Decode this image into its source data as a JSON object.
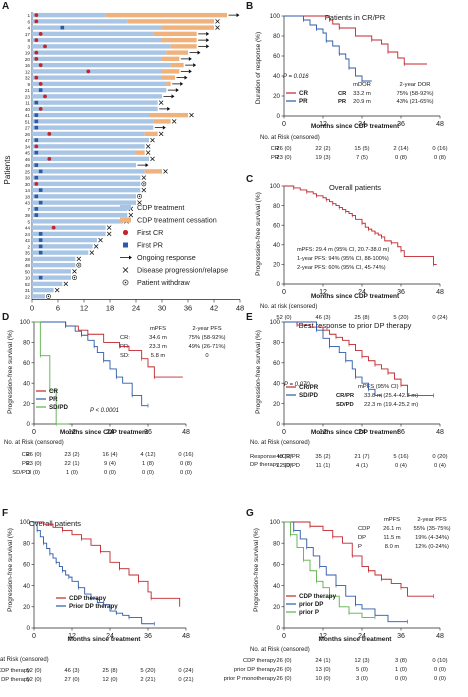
{
  "colors": {
    "treatment": "#a9c5e6",
    "cessation": "#f0b27d",
    "cr": "#c0262c",
    "pr": "#2c5aa8",
    "sd": "#5bb04a",
    "grey": "#555555"
  },
  "panelA": {
    "letter": "A",
    "ylabel": "Patients",
    "xticks": [
      0,
      6,
      12,
      18,
      24,
      30,
      36,
      42,
      48
    ],
    "legend": [
      "CDP treatment",
      "CDP treatment cessation",
      "First CR",
      "First PR",
      "Ongoing response",
      "Disease progression/relapse",
      "Patient withdraw"
    ],
    "patients": [
      {
        "id": "1",
        "t": 17,
        "c": 28,
        "cr": 1,
        "pr": 0,
        "e": "arrow"
      },
      {
        "id": "6",
        "t": 22,
        "c": 20,
        "cr": 1,
        "pr": 0,
        "e": "x"
      },
      {
        "id": "4",
        "t": 30,
        "c": 12,
        "cr": 0,
        "pr": 7,
        "e": "x"
      },
      {
        "id": "17",
        "t": 28,
        "c": 10,
        "cr": 2,
        "pr": 0,
        "e": "arrow"
      },
      {
        "id": "8",
        "t": 30,
        "c": 8,
        "cr": 1,
        "pr": 0,
        "e": "arrow"
      },
      {
        "id": "3",
        "t": 32,
        "c": 6,
        "cr": 3,
        "pr": 0,
        "e": "arrow"
      },
      {
        "id": "19",
        "t": 31,
        "c": 5,
        "cr": 1,
        "pr": 0,
        "e": "arrow"
      },
      {
        "id": "20",
        "t": 30,
        "c": 4,
        "cr": 1,
        "pr": 0,
        "e": "arrow"
      },
      {
        "id": "16",
        "t": 32,
        "c": 3,
        "cr": 2,
        "pr": 0,
        "e": "arrow"
      },
      {
        "id": "12",
        "t": 30,
        "c": 4,
        "cr": 13,
        "pr": 0,
        "e": "arrow"
      },
      {
        "id": "32",
        "t": 30,
        "c": 3,
        "cr": 1,
        "pr": 0,
        "e": "arrow"
      },
      {
        "id": "9",
        "t": 31,
        "c": 1,
        "cr": 2,
        "pr": 0,
        "e": "arrow"
      },
      {
        "id": "21",
        "t": 31,
        "c": 0,
        "cr": 0,
        "pr": 2,
        "e": "arrow"
      },
      {
        "id": "23",
        "t": 30,
        "c": 0,
        "cr": 3,
        "pr": 0,
        "e": "arrow"
      },
      {
        "id": "11",
        "t": 29,
        "c": 0,
        "cr": 0,
        "pr": 1,
        "e": "x"
      },
      {
        "id": "40",
        "t": 29,
        "c": 0,
        "cr": 2,
        "pr": 0,
        "e": "arrow"
      },
      {
        "id": "41",
        "t": 27,
        "c": 9,
        "cr": 0,
        "pr": 1,
        "e": "x"
      },
      {
        "id": "51",
        "t": 28,
        "c": 4,
        "cr": 0,
        "pr": 1,
        "e": "x"
      },
      {
        "id": "27",
        "t": 28,
        "c": 0,
        "cr": 0,
        "pr": 1,
        "e": "arrow"
      },
      {
        "id": "26",
        "t": 26,
        "c": 3,
        "cr": 4,
        "pr": 0,
        "e": "x"
      },
      {
        "id": "47",
        "t": 27,
        "c": 0,
        "cr": 0,
        "pr": 1,
        "e": "x"
      },
      {
        "id": "34",
        "t": 26,
        "c": 0,
        "cr": 1,
        "pr": 0,
        "e": "x"
      },
      {
        "id": "45",
        "t": 24,
        "c": 2,
        "cr": 0,
        "pr": 1,
        "e": "x"
      },
      {
        "id": "46",
        "t": 27,
        "c": 0,
        "cr": 4,
        "pr": 0,
        "e": "x"
      },
      {
        "id": "49",
        "t": 24,
        "c": 0,
        "cr": 0,
        "pr": 1,
        "e": "arrow"
      },
      {
        "id": "25",
        "t": 26,
        "c": 4,
        "cr": 0,
        "pr": 2,
        "e": "x"
      },
      {
        "id": "38",
        "t": 25,
        "c": 0,
        "cr": 0,
        "pr": 1,
        "e": "x"
      },
      {
        "id": "30",
        "t": 25,
        "c": 0,
        "cr": 1,
        "pr": 0,
        "e": "o"
      },
      {
        "id": "14",
        "t": 25,
        "c": 0,
        "cr": 0,
        "pr": 2,
        "e": "x"
      },
      {
        "id": "18",
        "t": 24,
        "c": 0,
        "cr": 0,
        "pr": 1,
        "e": "o"
      },
      {
        "id": "43",
        "t": 24,
        "c": 0,
        "cr": 0,
        "pr": 2,
        "e": "x"
      },
      {
        "id": "7",
        "t": 22,
        "c": 0,
        "cr": 0,
        "pr": 1,
        "e": "x"
      },
      {
        "id": "39",
        "t": 22,
        "c": 0,
        "cr": 0,
        "pr": 1,
        "e": "x"
      },
      {
        "id": "5",
        "t": 21,
        "c": 0,
        "cr": 0,
        "pr": 0,
        "e": "x"
      },
      {
        "id": "44",
        "t": 17,
        "c": 0,
        "cr": 5,
        "pr": 0,
        "e": "x"
      },
      {
        "id": "24",
        "t": 17,
        "c": 0,
        "cr": 0,
        "pr": 2,
        "e": "x"
      },
      {
        "id": "42",
        "t": 15,
        "c": 0,
        "cr": 0,
        "pr": 2,
        "e": "x"
      },
      {
        "id": "2",
        "t": 14,
        "c": 0,
        "cr": 0,
        "pr": 2,
        "e": "x"
      },
      {
        "id": "35",
        "t": 13,
        "c": 0,
        "cr": 0,
        "pr": 2,
        "e": "x"
      },
      {
        "id": "28",
        "t": 10,
        "c": 0,
        "cr": 0,
        "pr": 0,
        "e": "x"
      },
      {
        "id": "48",
        "t": 10,
        "c": 0,
        "cr": 0,
        "pr": 0,
        "e": "o"
      },
      {
        "id": "50",
        "t": 9,
        "c": 0,
        "cr": 0,
        "pr": 0,
        "e": "x"
      },
      {
        "id": "10",
        "t": 9,
        "c": 0,
        "cr": 0,
        "pr": 2,
        "e": "o"
      },
      {
        "id": "52",
        "t": 7,
        "c": 0,
        "cr": 0,
        "pr": 0,
        "e": "x"
      },
      {
        "id": "31",
        "t": 5,
        "c": 0,
        "cr": 0,
        "pr": 0,
        "e": "x"
      },
      {
        "id": "22",
        "t": 3,
        "c": 0,
        "cr": 0,
        "pr": 0,
        "e": "o"
      }
    ]
  },
  "panelB": {
    "letter": "B",
    "title": "Patients in CR/PR",
    "ylabel": "Duration of response (%)",
    "xlabel": "Months since CDP treatment",
    "xticks": [
      0,
      12,
      24,
      36,
      48
    ],
    "yticks": [
      0,
      20,
      40,
      60,
      80,
      100
    ],
    "xlim": [
      0,
      48
    ],
    "ylim": [
      0,
      100
    ],
    "pvalue": "P = 0.016",
    "table_head": [
      "mDOR",
      "2-year DOR"
    ],
    "table_rows": [
      [
        "CR",
        "33.2 m",
        "75% (58-92%)"
      ],
      [
        "PR",
        "20.9 m",
        "43% (21-65%)"
      ]
    ],
    "risk_title": "No. at Risk (censored)",
    "risk": [
      [
        "CR",
        "26 (0)",
        "22 (2)",
        "15 (5)",
        "2 (14)",
        "0 (16)"
      ],
      [
        "PR",
        "23 (0)",
        "19 (3)",
        "7 (5)",
        "0 (8)",
        "0 (8)"
      ]
    ],
    "series": [
      {
        "name": "CR",
        "color": "cr",
        "x": [
          0,
          14,
          15,
          17,
          22,
          27,
          30,
          32,
          35,
          37,
          44
        ],
        "y": [
          100,
          96,
          92,
          88,
          80,
          76,
          72,
          64,
          58,
          52,
          52
        ]
      },
      {
        "name": "PR",
        "color": "pr",
        "x": [
          0,
          6,
          8,
          10,
          12,
          13,
          15,
          17,
          19,
          20,
          22,
          24,
          27
        ],
        "y": [
          100,
          96,
          91,
          87,
          83,
          75,
          70,
          62,
          57,
          48,
          40,
          35,
          35
        ]
      }
    ]
  },
  "panelC": {
    "letter": "C",
    "title": "Overall patients",
    "ylabel": "Progression-free survival (%)",
    "xlabel": "Months since CDP treatment",
    "xticks": [
      0,
      12,
      24,
      36,
      48
    ],
    "yticks": [
      0,
      20,
      40,
      60,
      80,
      100
    ],
    "xlim": [
      0,
      48
    ],
    "ylim": [
      0,
      100
    ],
    "stats": [
      "mPFS: 29.4 m (95% CI, 20.7-38.0 m)",
      "1-year PFS: 94% (95% CI, 88-100%)",
      "2-year PFS: 60% (95% CI, 45-74%)"
    ],
    "risk_title": "No. at risk (censored)",
    "risk": [
      [
        "",
        "52 (0)",
        "46 (3)",
        "25 (8)",
        "5 (20)",
        "0 (24)"
      ]
    ],
    "series": [
      {
        "name": "",
        "color": "cr",
        "x": [
          0,
          3,
          5,
          7,
          9,
          10,
          12,
          13,
          14,
          15,
          16,
          17,
          18,
          19,
          20,
          21,
          22,
          24,
          25,
          26,
          27,
          28,
          29,
          30,
          31,
          33,
          35,
          36,
          37,
          46,
          47
        ],
        "y": [
          100,
          98,
          96,
          94,
          92,
          90,
          88,
          86,
          84,
          82,
          80,
          78,
          76,
          74,
          72,
          70,
          66,
          62,
          58,
          56,
          54,
          52,
          50,
          48,
          44,
          42,
          38,
          34,
          28,
          20,
          20
        ]
      }
    ]
  },
  "panelD": {
    "letter": "D",
    "ylabel": "Progression-free survival (%)",
    "xlabel": "Months since CDP treatment",
    "xticks": [
      0,
      12,
      24,
      36,
      48
    ],
    "yticks": [
      0,
      20,
      40,
      60,
      80,
      100
    ],
    "xlim": [
      0,
      48
    ],
    "ylim": [
      0,
      100
    ],
    "pvalue": "P < 0.0001",
    "table_head": [
      "mPFS",
      "2-year PFS"
    ],
    "table_rows": [
      [
        "CR:",
        "34.6 m",
        "75% (58-92%)"
      ],
      [
        "PR:",
        "23.3 m",
        "49% (26-71%)"
      ],
      [
        "SD:",
        "5.8 m",
        "0"
      ]
    ],
    "risk_title": "No. at Risk (censored)",
    "risk": [
      [
        "CR",
        "26 (0)",
        "23 (2)",
        "16 (4)",
        "4 (12)",
        "0 (16)"
      ],
      [
        "PR",
        "23 (0)",
        "22 (1)",
        "9 (4)",
        "1 (8)",
        "0 (8)"
      ],
      [
        "SD/PD",
        "3 (0)",
        "1 (0)",
        "0 (0)",
        "0 (0)",
        "0 (0)"
      ]
    ],
    "series": [
      {
        "name": "CR",
        "color": "cr",
        "x": [
          0,
          10,
          14,
          17,
          22,
          27,
          30,
          34,
          36,
          38,
          47
        ],
        "y": [
          100,
          96,
          92,
          88,
          80,
          76,
          72,
          64,
          56,
          46,
          46
        ]
      },
      {
        "name": "PR",
        "color": "pr",
        "x": [
          0,
          10,
          13,
          15,
          17,
          19,
          20,
          22,
          24,
          26,
          28,
          31,
          34,
          36
        ],
        "y": [
          100,
          96,
          91,
          87,
          82,
          76,
          70,
          62,
          54,
          46,
          40,
          28,
          18,
          18
        ]
      },
      {
        "name": "SD/PD",
        "color": "sd",
        "x": [
          0,
          2,
          5,
          7,
          11
        ],
        "y": [
          100,
          67,
          33,
          0,
          0
        ]
      }
    ]
  },
  "panelE": {
    "letter": "E",
    "title": "Best response to prior DP therapy",
    "ylabel": "Progression-free survival (%)",
    "xlabel": "Months since CDP treatment",
    "xticks": [
      0,
      12,
      24,
      36,
      48
    ],
    "yticks": [
      0,
      20,
      40,
      60,
      80,
      100
    ],
    "xlim": [
      0,
      48
    ],
    "ylim": [
      0,
      100
    ],
    "pvalue": "P = 0.070",
    "table_head": "mPFS (95% CI)",
    "table_rows": [
      [
        "CR/PR",
        "33.8 m (25.4-42.3 m)"
      ],
      [
        "SD/PD",
        "22.3 m (19.4-25.2 m)"
      ]
    ],
    "risk_title": "No. at Risk (censored)",
    "risk_group_label": [
      "Response to",
      "DP therapy"
    ],
    "risk": [
      [
        "CR/PR",
        "40 (0)",
        "35 (2)",
        "21 (7)",
        "5 (16)",
        "0 (20)"
      ],
      [
        "SD/PD",
        "12 (0)",
        "11 (1)",
        "4 (1)",
        "0 (4)",
        "0 (4)"
      ]
    ],
    "series": [
      {
        "name": "CR/PR",
        "color": "cr",
        "x": [
          0,
          4,
          8,
          12,
          14,
          16,
          18,
          20,
          22,
          24,
          26,
          28,
          30,
          32,
          34,
          36,
          38,
          46
        ],
        "y": [
          100,
          97,
          95,
          92,
          88,
          85,
          82,
          78,
          72,
          66,
          62,
          58,
          54,
          50,
          44,
          38,
          28,
          28
        ]
      },
      {
        "name": "SD/PD",
        "color": "pr",
        "x": [
          0,
          10,
          12,
          14,
          17,
          19,
          21,
          22,
          24,
          26,
          28,
          30
        ],
        "y": [
          100,
          92,
          84,
          76,
          70,
          62,
          54,
          46,
          40,
          34,
          28,
          28
        ]
      }
    ]
  },
  "panelF": {
    "letter": "F",
    "title": "Overall patients",
    "ylabel": "Progression-free survival (%)",
    "xlabel": "Months since treatment",
    "xticks": [
      0,
      12,
      24,
      36,
      48
    ],
    "yticks": [
      0,
      20,
      40,
      60,
      80,
      100
    ],
    "xlim": [
      0,
      48
    ],
    "ylim": [
      0,
      100
    ],
    "risk_title": "at Risk (censored)",
    "risk": [
      [
        "CDP therapy",
        "52 (0)",
        "46 (3)",
        "25 (8)",
        "5 (20)",
        "0 (24)"
      ],
      [
        "r DP therapy",
        "52 (0)",
        "27 (0)",
        "12 (0)",
        "2 (21)",
        "0 (21)"
      ]
    ],
    "series": [
      {
        "name": "CDP therapy",
        "color": "cr",
        "x": [
          0,
          3,
          6,
          9,
          12,
          15,
          18,
          21,
          24,
          27,
          30,
          33,
          36,
          37,
          46
        ],
        "y": [
          100,
          98,
          95,
          92,
          88,
          84,
          78,
          72,
          62,
          56,
          50,
          44,
          34,
          28,
          20
        ]
      },
      {
        "name": "Prior DP therapy",
        "color": "pr",
        "x": [
          0,
          1,
          2,
          3,
          4,
          5,
          6,
          7,
          8,
          9,
          10,
          11,
          12,
          14,
          16,
          18,
          20,
          22,
          24,
          26,
          28,
          30,
          34,
          38
        ],
        "y": [
          100,
          92,
          86,
          80,
          75,
          70,
          66,
          62,
          58,
          54,
          50,
          48,
          44,
          38,
          32,
          28,
          24,
          22,
          16,
          14,
          12,
          10,
          4,
          4
        ]
      }
    ]
  },
  "panelG": {
    "letter": "G",
    "ylabel": "Progression-free survival (%)",
    "xlabel": "Months since treatment",
    "xticks": [
      0,
      12,
      24,
      36,
      48
    ],
    "yticks": [
      0,
      20,
      40,
      60,
      80,
      100
    ],
    "xlim": [
      0,
      48
    ],
    "ylim": [
      0,
      100
    ],
    "table_head": [
      "mPFS",
      "2-year PFS"
    ],
    "table_rows": [
      [
        "CDP",
        "26.1 m",
        "55% (35-75%)"
      ],
      [
        "DP",
        "11.5 m",
        "19% (4-34%)"
      ],
      [
        "P",
        "8.0 m",
        "12% (0-24%)"
      ]
    ],
    "risk_title": "No. at Risk (censored)",
    "risk": [
      [
        "CDP therapy",
        "26 (0)",
        "24 (1)",
        "12 (3)",
        "3 (8)",
        "0 (10)"
      ],
      [
        "prior DP therapy",
        "26 (0)",
        "13 (0)",
        "5 (0)",
        "1 (0)",
        "0 (0)"
      ],
      [
        "prior P monotherapy",
        "26 (0)",
        "10 (0)",
        "3 (0)",
        "0 (0)",
        "0 (0)"
      ]
    ],
    "series": [
      {
        "name": "CDP therapy",
        "color": "cr",
        "x": [
          0,
          8,
          12,
          15,
          18,
          21,
          24,
          26,
          28,
          30,
          33,
          36,
          38,
          46
        ],
        "y": [
          100,
          96,
          92,
          86,
          80,
          68,
          58,
          54,
          50,
          46,
          42,
          38,
          30,
          30
        ]
      },
      {
        "name": "prior DP",
        "color": "pr",
        "x": [
          0,
          3,
          5,
          7,
          9,
          11,
          13,
          16,
          19,
          22,
          24,
          28,
          32,
          38
        ],
        "y": [
          100,
          92,
          84,
          76,
          68,
          58,
          50,
          40,
          30,
          22,
          18,
          12,
          6,
          6
        ]
      },
      {
        "name": "prior P",
        "color": "sd",
        "x": [
          0,
          2,
          4,
          6,
          8,
          10,
          12,
          14,
          17,
          20,
          24,
          28
        ],
        "y": [
          100,
          88,
          76,
          64,
          54,
          44,
          38,
          30,
          20,
          14,
          10,
          10
        ]
      }
    ]
  }
}
